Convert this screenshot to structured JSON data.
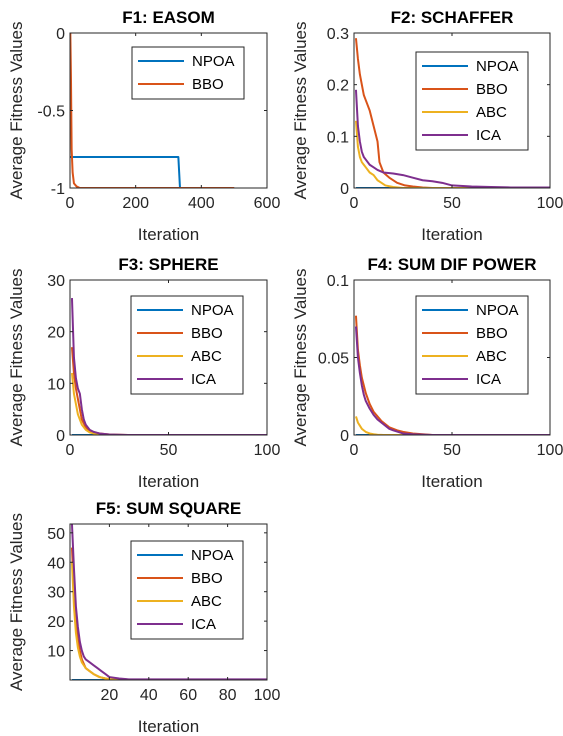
{
  "series_colors": {
    "NPOA": "#0072BD",
    "BBO": "#D95319",
    "ABC": "#EDB120",
    "ICA": "#7E2F8E"
  },
  "chart_data": [
    {
      "type": "line",
      "title": "F1: EASOM",
      "xlabel": "Iteration",
      "ylabel": "Average Fitness Values",
      "xlim": [
        0,
        600
      ],
      "ylim": [
        -1,
        0
      ],
      "xticks": [
        0,
        200,
        400,
        600
      ],
      "yticks": [
        -1,
        -0.5,
        0
      ],
      "ytick_labels": [
        "-1",
        "-0.5",
        "0"
      ],
      "grid": false,
      "legend_position": "top-right",
      "series": [
        {
          "name": "NPOA",
          "x": [
            1,
            330,
            335,
            500
          ],
          "y": [
            -0.8,
            -0.8,
            -1,
            -1
          ]
        },
        {
          "name": "BBO",
          "x": [
            1,
            3,
            5,
            8,
            12,
            20,
            30,
            500
          ],
          "y": [
            0,
            -0.3,
            -0.75,
            -0.9,
            -0.97,
            -0.99,
            -1,
            -1
          ]
        }
      ]
    },
    {
      "type": "line",
      "title": "F2: SCHAFFER",
      "xlabel": "Iteration",
      "ylabel": "Average Fitness Values",
      "xlim": [
        0,
        100
      ],
      "ylim": [
        0,
        0.3
      ],
      "xticks": [
        0,
        50,
        100
      ],
      "yticks": [
        0,
        0.1,
        0.2,
        0.3
      ],
      "grid": false,
      "legend_position": "top-right",
      "series": [
        {
          "name": "NPOA",
          "x": [
            1,
            100
          ],
          "y": [
            0,
            0
          ]
        },
        {
          "name": "BBO",
          "x": [
            1,
            2,
            3,
            4,
            5,
            6,
            7,
            8,
            10,
            12,
            13,
            15,
            18,
            22,
            26,
            30,
            35,
            40,
            100
          ],
          "y": [
            0.29,
            0.25,
            0.22,
            0.2,
            0.18,
            0.17,
            0.16,
            0.15,
            0.12,
            0.09,
            0.05,
            0.03,
            0.02,
            0.01,
            0.005,
            0.003,
            0.001,
            0,
            0
          ]
        },
        {
          "name": "ABC",
          "x": [
            1,
            2,
            3,
            4,
            5,
            6,
            8,
            10,
            12,
            14,
            16,
            20,
            25,
            100
          ],
          "y": [
            0.13,
            0.08,
            0.06,
            0.05,
            0.045,
            0.04,
            0.03,
            0.025,
            0.015,
            0.01,
            0.005,
            0.002,
            0,
            0
          ]
        },
        {
          "name": "ICA",
          "x": [
            1,
            2,
            3,
            4,
            5,
            6,
            8,
            10,
            12,
            15,
            20,
            25,
            30,
            35,
            40,
            45,
            50,
            60,
            70,
            80,
            100
          ],
          "y": [
            0.19,
            0.12,
            0.09,
            0.07,
            0.06,
            0.055,
            0.045,
            0.04,
            0.035,
            0.03,
            0.028,
            0.025,
            0.02,
            0.015,
            0.013,
            0.01,
            0.005,
            0.003,
            0.002,
            0.001,
            0.001
          ]
        }
      ]
    },
    {
      "type": "line",
      "title": "F3: SPHERE",
      "xlabel": "Iteration",
      "ylabel": "Average Fitness Values",
      "xlim": [
        0,
        100
      ],
      "ylim": [
        0,
        30
      ],
      "xticks": [
        0,
        50,
        100
      ],
      "yticks": [
        0,
        10,
        20,
        30
      ],
      "grid": false,
      "legend_position": "top-right",
      "series": [
        {
          "name": "NPOA",
          "x": [
            1,
            100
          ],
          "y": [
            0,
            0
          ]
        },
        {
          "name": "BBO",
          "x": [
            1,
            2,
            3,
            4,
            5,
            6,
            8,
            10,
            12,
            15,
            20,
            30,
            100
          ],
          "y": [
            17,
            12,
            9,
            7,
            5,
            3,
            1.5,
            0.8,
            0.5,
            0.3,
            0.1,
            0,
            0
          ]
        },
        {
          "name": "ABC",
          "x": [
            1,
            2,
            3,
            4,
            5,
            6,
            8,
            10,
            12,
            15,
            20,
            100
          ],
          "y": [
            12,
            8,
            6,
            4,
            3,
            2,
            1,
            0.5,
            0.3,
            0.1,
            0,
            0
          ]
        },
        {
          "name": "ICA",
          "x": [
            1,
            2,
            3,
            4,
            5,
            6,
            7,
            8,
            10,
            12,
            15,
            20,
            30,
            100
          ],
          "y": [
            26.5,
            15,
            11,
            9,
            8,
            5,
            3,
            2,
            1,
            0.6,
            0.3,
            0.1,
            0,
            0
          ]
        }
      ]
    },
    {
      "type": "line",
      "title": "F4: SUM DIF POWER",
      "xlabel": "Iteration",
      "ylabel": "Average Fitness Values",
      "xlim": [
        0,
        100
      ],
      "ylim": [
        0,
        0.1
      ],
      "xticks": [
        0,
        50,
        100
      ],
      "yticks": [
        0,
        0.05,
        0.1
      ],
      "grid": false,
      "legend_position": "top-right",
      "series": [
        {
          "name": "NPOA",
          "x": [
            1,
            100
          ],
          "y": [
            0,
            0
          ]
        },
        {
          "name": "BBO",
          "x": [
            1,
            2,
            3,
            4,
            5,
            6,
            8,
            10,
            12,
            14,
            16,
            18,
            20,
            22,
            25,
            30,
            40,
            100
          ],
          "y": [
            0.077,
            0.055,
            0.045,
            0.037,
            0.032,
            0.027,
            0.02,
            0.015,
            0.012,
            0.009,
            0.007,
            0.005,
            0.004,
            0.003,
            0.002,
            0.001,
            0,
            0
          ]
        },
        {
          "name": "ABC",
          "x": [
            1,
            2,
            3,
            4,
            5,
            6,
            8,
            10,
            12,
            15,
            100
          ],
          "y": [
            0.012,
            0.008,
            0.006,
            0.004,
            0.003,
            0.002,
            0.001,
            0.0005,
            0.0002,
            0,
            0
          ]
        },
        {
          "name": "ICA",
          "x": [
            1,
            2,
            3,
            4,
            5,
            6,
            8,
            10,
            12,
            14,
            16,
            18,
            20,
            25,
            30,
            40,
            100
          ],
          "y": [
            0.07,
            0.05,
            0.04,
            0.032,
            0.026,
            0.022,
            0.017,
            0.013,
            0.01,
            0.008,
            0.006,
            0.004,
            0.003,
            0.001,
            0.0005,
            0,
            0
          ]
        }
      ]
    },
    {
      "type": "line",
      "title": "F5: SUM SQUARE",
      "xlabel": "Iteration",
      "ylabel": "Average Fitness Values",
      "xlim": [
        0,
        100
      ],
      "ylim": [
        0,
        53
      ],
      "xticks": [
        20,
        40,
        60,
        80,
        100
      ],
      "yticks": [
        10,
        20,
        30,
        40,
        50
      ],
      "grid": false,
      "legend_position": "top-right",
      "series": [
        {
          "name": "NPOA",
          "x": [
            1,
            100
          ],
          "y": [
            0,
            0
          ]
        },
        {
          "name": "BBO",
          "x": [
            1,
            2,
            3,
            4,
            5,
            6,
            8,
            10,
            12,
            15,
            18,
            20,
            25,
            30,
            100
          ],
          "y": [
            45,
            30,
            20,
            14,
            10,
            7,
            4,
            3,
            2,
            1,
            0.5,
            0.3,
            0.1,
            0,
            0
          ]
        },
        {
          "name": "ABC",
          "x": [
            1,
            2,
            3,
            4,
            5,
            6,
            8,
            10,
            12,
            15,
            18,
            20,
            25,
            100
          ],
          "y": [
            40,
            25,
            16,
            11,
            8,
            6,
            4,
            3,
            2,
            1,
            0.5,
            0.2,
            0,
            0
          ]
        },
        {
          "name": "ICA",
          "x": [
            1,
            2,
            3,
            4,
            5,
            6,
            7,
            8,
            10,
            12,
            14,
            16,
            18,
            20,
            25,
            30,
            100
          ],
          "y": [
            53,
            38,
            25,
            18,
            13,
            10,
            8,
            7,
            6,
            5,
            4,
            3,
            2,
            1,
            0.5,
            0.2,
            0.2
          ]
        }
      ]
    }
  ]
}
